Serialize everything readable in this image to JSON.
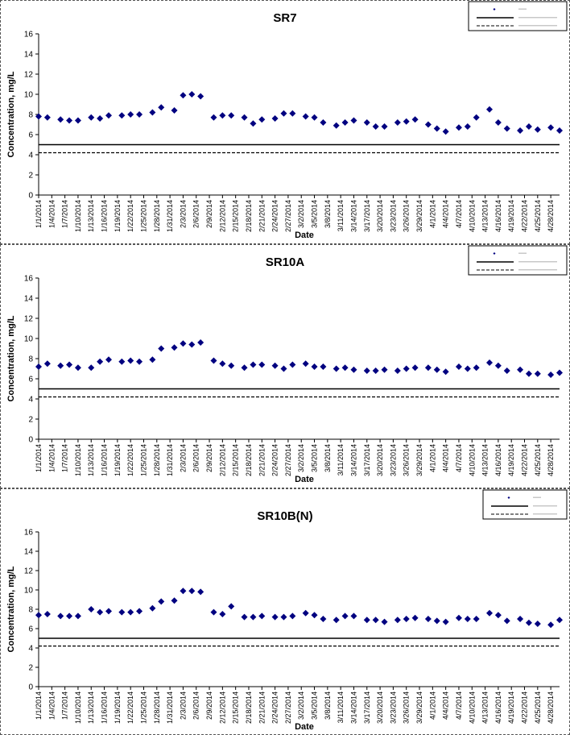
{
  "theme": {
    "marker_color": "#000080",
    "line_color": "#000000",
    "axis_color": "#000000",
    "background": "#ffffff"
  },
  "chart_data": [
    {
      "type": "scatter",
      "title": "SR7",
      "xlabel": "Date",
      "ylabel": "Concentration, mg/L",
      "ylim": [
        0,
        16
      ],
      "yticks": [
        0,
        2,
        4,
        6,
        8,
        10,
        12,
        14,
        16
      ],
      "xlim": [
        "1/1/2014",
        "4/30/2014"
      ],
      "xtick_labels": [
        "1/1/2014",
        "1/4/2014",
        "1/7/2014",
        "1/10/2014",
        "1/13/2014",
        "1/16/2014",
        "1/19/2014",
        "1/22/2014",
        "1/25/2014",
        "1/28/2014",
        "1/31/2014",
        "2/3/2014",
        "2/6/2014",
        "2/9/2014",
        "2/12/2014",
        "2/15/2014",
        "2/18/2014",
        "2/21/2014",
        "2/24/2014",
        "2/27/2014",
        "3/2/2014",
        "3/5/2014",
        "3/8/2014",
        "3/11/2014",
        "3/14/2014",
        "3/17/2014",
        "3/20/2014",
        "3/23/2014",
        "3/26/2014",
        "3/29/2014",
        "4/1/2014",
        "4/4/2014",
        "4/7/2014",
        "4/10/2014",
        "4/13/2014",
        "4/16/2014",
        "4/19/2014",
        "4/22/2014",
        "4/25/2014",
        "4/28/2014"
      ],
      "grid": false,
      "legend_position": "top-right",
      "series": [
        {
          "kind": "points",
          "x": [
            "1/1/2014",
            "1/3/2014",
            "1/6/2014",
            "1/8/2014",
            "1/10/2014",
            "1/13/2014",
            "1/15/2014",
            "1/17/2014",
            "1/20/2014",
            "1/22/2014",
            "1/24/2014",
            "1/27/2014",
            "1/29/2014",
            "2/1/2014",
            "2/3/2014",
            "2/5/2014",
            "2/7/2014",
            "2/10/2014",
            "2/12/2014",
            "2/14/2014",
            "2/17/2014",
            "2/19/2014",
            "2/21/2014",
            "2/24/2014",
            "2/26/2014",
            "2/28/2014",
            "3/3/2014",
            "3/5/2014",
            "3/7/2014",
            "3/10/2014",
            "3/12/2014",
            "3/14/2014",
            "3/17/2014",
            "3/19/2014",
            "3/21/2014",
            "3/24/2014",
            "3/26/2014",
            "3/28/2014",
            "3/31/2014",
            "4/2/2014",
            "4/4/2014",
            "4/7/2014",
            "4/9/2014",
            "4/11/2014",
            "4/14/2014",
            "4/16/2014",
            "4/18/2014",
            "4/21/2014",
            "4/23/2014",
            "4/25/2014",
            "4/28/2014",
            "4/30/2014"
          ],
          "y": [
            7.8,
            7.7,
            7.5,
            7.4,
            7.4,
            7.7,
            7.6,
            7.9,
            7.9,
            8.0,
            8.0,
            8.2,
            8.7,
            8.4,
            9.9,
            10.0,
            9.8,
            7.7,
            7.9,
            7.9,
            7.7,
            7.1,
            7.5,
            7.6,
            8.1,
            8.1,
            7.8,
            7.7,
            7.2,
            6.9,
            7.2,
            7.4,
            7.2,
            6.8,
            6.8,
            7.2,
            7.3,
            7.5,
            7.0,
            6.6,
            6.3,
            6.7,
            6.8,
            7.7,
            8.5,
            7.2,
            6.6,
            6.4,
            6.8,
            6.5,
            6.7,
            6.4
          ]
        },
        {
          "kind": "hline",
          "style": "solid",
          "y": 5.0
        },
        {
          "kind": "hline",
          "style": "dashed",
          "y": 4.2
        }
      ]
    },
    {
      "type": "scatter",
      "title": "SR10A",
      "xlabel": "Date",
      "ylabel": "Concentration, mg/L",
      "ylim": [
        0,
        16
      ],
      "yticks": [
        0,
        2,
        4,
        6,
        8,
        10,
        12,
        14,
        16
      ],
      "xlim": [
        "1/1/2014",
        "4/30/2014"
      ],
      "xtick_labels": [
        "1/1/2014",
        "1/4/2014",
        "1/7/2014",
        "1/10/2014",
        "1/13/2014",
        "1/16/2014",
        "1/19/2014",
        "1/22/2014",
        "1/25/2014",
        "1/28/2014",
        "1/31/2014",
        "2/3/2014",
        "2/6/2014",
        "2/9/2014",
        "2/12/2014",
        "2/15/2014",
        "2/18/2014",
        "2/21/2014",
        "2/24/2014",
        "2/27/2014",
        "3/2/2014",
        "3/5/2014",
        "3/8/2014",
        "3/11/2014",
        "3/14/2014",
        "3/17/2014",
        "3/20/2014",
        "3/23/2014",
        "3/26/2014",
        "3/29/2014",
        "4/1/2014",
        "4/4/2014",
        "4/7/2014",
        "4/10/2014",
        "4/13/2014",
        "4/16/2014",
        "4/19/2014",
        "4/22/2014",
        "4/25/2014",
        "4/28/2014"
      ],
      "grid": false,
      "legend_position": "top-right",
      "series": [
        {
          "kind": "points",
          "x": [
            "1/1/2014",
            "1/3/2014",
            "1/6/2014",
            "1/8/2014",
            "1/10/2014",
            "1/13/2014",
            "1/15/2014",
            "1/17/2014",
            "1/20/2014",
            "1/22/2014",
            "1/24/2014",
            "1/27/2014",
            "1/29/2014",
            "2/1/2014",
            "2/3/2014",
            "2/5/2014",
            "2/7/2014",
            "2/10/2014",
            "2/12/2014",
            "2/14/2014",
            "2/17/2014",
            "2/19/2014",
            "2/21/2014",
            "2/24/2014",
            "2/26/2014",
            "2/28/2014",
            "3/3/2014",
            "3/5/2014",
            "3/7/2014",
            "3/10/2014",
            "3/12/2014",
            "3/14/2014",
            "3/17/2014",
            "3/19/2014",
            "3/21/2014",
            "3/24/2014",
            "3/26/2014",
            "3/28/2014",
            "3/31/2014",
            "4/2/2014",
            "4/4/2014",
            "4/7/2014",
            "4/9/2014",
            "4/11/2014",
            "4/14/2014",
            "4/16/2014",
            "4/18/2014",
            "4/21/2014",
            "4/23/2014",
            "4/25/2014",
            "4/28/2014",
            "4/30/2014"
          ],
          "y": [
            7.2,
            7.5,
            7.3,
            7.4,
            7.1,
            7.1,
            7.7,
            7.9,
            7.7,
            7.8,
            7.7,
            7.9,
            9.0,
            9.1,
            9.5,
            9.4,
            9.6,
            7.8,
            7.5,
            7.3,
            7.1,
            7.4,
            7.4,
            7.3,
            7.0,
            7.4,
            7.5,
            7.2,
            7.2,
            7.0,
            7.1,
            6.9,
            6.8,
            6.8,
            6.9,
            6.8,
            7.0,
            7.1,
            7.1,
            6.9,
            6.7,
            7.2,
            7.0,
            7.1,
            7.6,
            7.3,
            6.8,
            6.9,
            6.5,
            6.5,
            6.4,
            6.6
          ]
        },
        {
          "kind": "hline",
          "style": "solid",
          "y": 5.0
        },
        {
          "kind": "hline",
          "style": "dashed",
          "y": 4.2
        }
      ]
    },
    {
      "type": "scatter",
      "title": "SR10B(N)",
      "xlabel": "Date",
      "ylabel": "Concentration, mg/L",
      "ylim": [
        0,
        16
      ],
      "yticks": [
        0,
        2,
        4,
        6,
        8,
        10,
        12,
        14,
        16
      ],
      "xlim": [
        "1/1/2014",
        "4/30/2014"
      ],
      "xtick_labels": [
        "1/1/2014",
        "1/4/2014",
        "1/7/2014",
        "1/10/2014",
        "1/13/2014",
        "1/16/2014",
        "1/19/2014",
        "1/22/2014",
        "1/25/2014",
        "1/28/2014",
        "1/31/2014",
        "2/3/2014",
        "2/6/2014",
        "2/9/2014",
        "2/12/2014",
        "2/15/2014",
        "2/18/2014",
        "2/21/2014",
        "2/24/2014",
        "2/27/2014",
        "3/2/2014",
        "3/5/2014",
        "3/8/2014",
        "3/11/2014",
        "3/14/2014",
        "3/17/2014",
        "3/20/2014",
        "3/23/2014",
        "3/26/2014",
        "3/29/2014",
        "4/1/2014",
        "4/4/2014",
        "4/7/2014",
        "4/10/2014",
        "4/13/2014",
        "4/16/2014",
        "4/19/2014",
        "4/22/2014",
        "4/25/2014",
        "4/28/2014"
      ],
      "grid": false,
      "legend_position": "top-right",
      "series": [
        {
          "kind": "points",
          "x": [
            "1/1/2014",
            "1/3/2014",
            "1/6/2014",
            "1/8/2014",
            "1/10/2014",
            "1/13/2014",
            "1/15/2014",
            "1/17/2014",
            "1/20/2014",
            "1/22/2014",
            "1/24/2014",
            "1/27/2014",
            "1/29/2014",
            "2/1/2014",
            "2/3/2014",
            "2/5/2014",
            "2/7/2014",
            "2/10/2014",
            "2/12/2014",
            "2/14/2014",
            "2/17/2014",
            "2/19/2014",
            "2/21/2014",
            "2/24/2014",
            "2/26/2014",
            "2/28/2014",
            "3/3/2014",
            "3/5/2014",
            "3/7/2014",
            "3/10/2014",
            "3/12/2014",
            "3/14/2014",
            "3/17/2014",
            "3/19/2014",
            "3/21/2014",
            "3/24/2014",
            "3/26/2014",
            "3/28/2014",
            "3/31/2014",
            "4/2/2014",
            "4/4/2014",
            "4/7/2014",
            "4/9/2014",
            "4/11/2014",
            "4/14/2014",
            "4/16/2014",
            "4/18/2014",
            "4/21/2014",
            "4/23/2014",
            "4/25/2014",
            "4/28/2014",
            "4/30/2014"
          ],
          "y": [
            7.4,
            7.5,
            7.3,
            7.3,
            7.3,
            8.0,
            7.7,
            7.8,
            7.7,
            7.7,
            7.8,
            8.1,
            8.8,
            8.9,
            9.9,
            9.9,
            9.8,
            7.7,
            7.5,
            8.3,
            7.2,
            7.2,
            7.3,
            7.2,
            7.2,
            7.3,
            7.6,
            7.4,
            7.0,
            6.9,
            7.3,
            7.3,
            6.9,
            6.9,
            6.7,
            6.9,
            7.0,
            7.1,
            7.0,
            6.8,
            6.7,
            7.1,
            7.0,
            7.0,
            7.6,
            7.4,
            6.8,
            7.0,
            6.6,
            6.5,
            6.4,
            6.9
          ]
        },
        {
          "kind": "hline",
          "style": "solid",
          "y": 5.0
        },
        {
          "kind": "hline",
          "style": "dashed",
          "y": 4.2
        }
      ]
    }
  ]
}
